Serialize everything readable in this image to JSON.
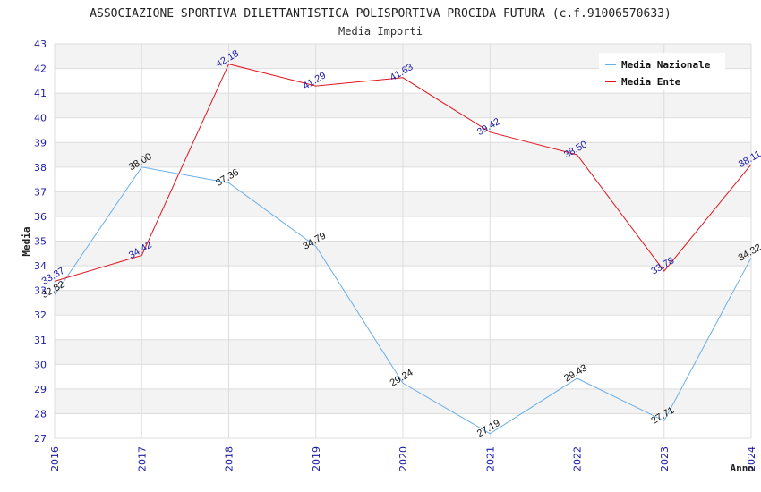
{
  "chart_data": {
    "type": "line",
    "title": "ASSOCIAZIONE SPORTIVA DILETTANTISTICA POLISPORTIVA PROCIDA FUTURA (c.f.91006570633)",
    "subtitle": "Media Importi",
    "xlabel": "Anno",
    "ylabel": "Media",
    "x": [
      "2016",
      "2017",
      "2018",
      "2019",
      "2020",
      "2021",
      "2022",
      "2023",
      "2024"
    ],
    "ylim": [
      27,
      43
    ],
    "yticks": [
      "27",
      "28",
      "29",
      "30",
      "31",
      "32",
      "33",
      "34",
      "35",
      "36",
      "37",
      "38",
      "39",
      "40",
      "41",
      "42",
      "43"
    ],
    "grid": true,
    "legend_position": "top-right",
    "series": [
      {
        "name": "Media Nazionale",
        "color": "#6aaee6",
        "label_color": "#111111",
        "values": [
          32.82,
          38.0,
          37.36,
          34.79,
          29.24,
          27.19,
          29.43,
          27.71,
          34.32
        ],
        "labels": [
          "32.82",
          "38.00",
          "37.36",
          "34.79",
          "29.24",
          "27.19",
          "29.43",
          "27.71",
          "34.32"
        ]
      },
      {
        "name": "Media Ente",
        "color": "#e0141e",
        "label_color": "#1a1aa6",
        "values": [
          33.37,
          34.42,
          42.18,
          41.29,
          41.63,
          39.42,
          38.5,
          33.78,
          38.11
        ],
        "labels": [
          "33.37",
          "34.42",
          "42.18",
          "41.29",
          "41.63",
          "39.42",
          "38.50",
          "33.78",
          "38.11"
        ]
      }
    ]
  }
}
